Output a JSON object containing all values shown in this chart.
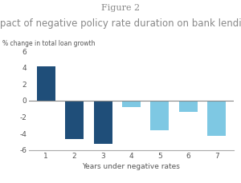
{
  "title_line1": "Figure 2",
  "title_line2": "Impact of negative policy rate duration on bank lending",
  "ylabel": "% change in total loan growth",
  "xlabel": "Years under negative rates",
  "categories": [
    1,
    2,
    3,
    4,
    5,
    6,
    7
  ],
  "values": [
    4.2,
    -4.7,
    -5.2,
    -0.8,
    -3.6,
    -1.4,
    -4.3
  ],
  "bar_colors": [
    "#1f4e79",
    "#1f4e79",
    "#1f4e79",
    "#7ec8e3",
    "#7ec8e3",
    "#7ec8e3",
    "#7ec8e3"
  ],
  "ylim": [
    -6,
    6
  ],
  "yticks": [
    -6,
    -4,
    -2,
    0,
    2,
    4,
    6
  ],
  "background_color": "#ffffff",
  "title_color": "#888888",
  "subtitle_color": "#888888",
  "axis_color": "#aaaaaa",
  "zero_line_color": "#888888",
  "label_fontsize": 6.5,
  "title_fontsize": 8,
  "subtitle_fontsize": 8.5,
  "ylabel_fontsize": 5.5,
  "xlabel_fontsize": 6.5
}
